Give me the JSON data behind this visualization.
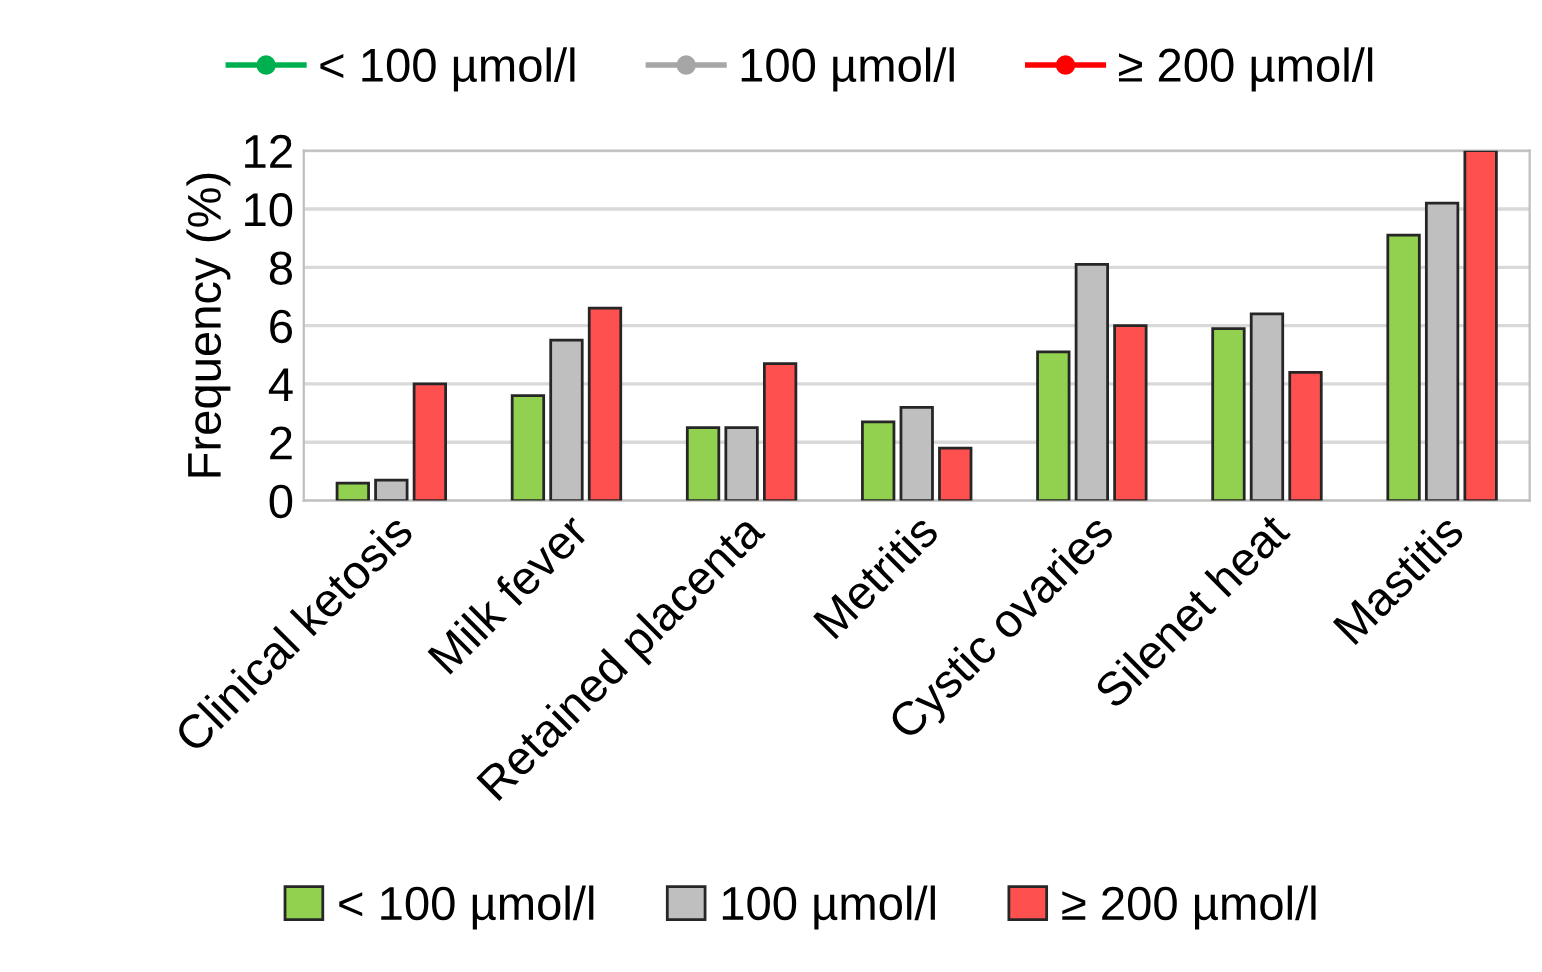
{
  "chart_data": {
    "type": "bar",
    "ylabel": "Frequency (%)",
    "categories": [
      "Clinical ketosis",
      "Milk fever",
      "Retained placenta",
      "Metritis",
      "Cystic ovaries",
      "Silenet heat",
      "Mastitis"
    ],
    "series": [
      {
        "name": "< 100 µmol/l",
        "color": "#00b050",
        "type": "line",
        "marker": "circle",
        "values": [
          null,
          null,
          null,
          null,
          null,
          null,
          null
        ]
      },
      {
        "name": "100 µmol/l",
        "color": "#a6a6a6",
        "type": "line",
        "marker": "circle",
        "values": [
          null,
          null,
          null,
          null,
          null,
          null,
          null
        ]
      },
      {
        "name": "≥ 200 µmol/l",
        "color": "#ff0000",
        "type": "line",
        "marker": "circle",
        "values": [
          null,
          null,
          null,
          null,
          null,
          null,
          null
        ]
      },
      {
        "name": "< 100 µmol/l",
        "color": "#92d050",
        "values": [
          0.6,
          3.6,
          2.5,
          2.7,
          5.1,
          5.9,
          9.1
        ]
      },
      {
        "name": "100 µmol/l",
        "color": "#bfbfbf",
        "values": [
          0.7,
          5.5,
          2.5,
          3.2,
          8.1,
          6.4,
          10.2
        ]
      },
      {
        "name": "≥ 200 µmol/l",
        "color": "#ff5050",
        "values": [
          4.0,
          6.6,
          4.7,
          1.8,
          6.0,
          4.4,
          12.0
        ]
      }
    ],
    "ylim": [
      0,
      12
    ],
    "yticks": [
      0,
      2,
      4,
      6,
      8,
      10,
      12
    ],
    "grid": "y",
    "legend": [
      "top",
      "bottom"
    ]
  }
}
